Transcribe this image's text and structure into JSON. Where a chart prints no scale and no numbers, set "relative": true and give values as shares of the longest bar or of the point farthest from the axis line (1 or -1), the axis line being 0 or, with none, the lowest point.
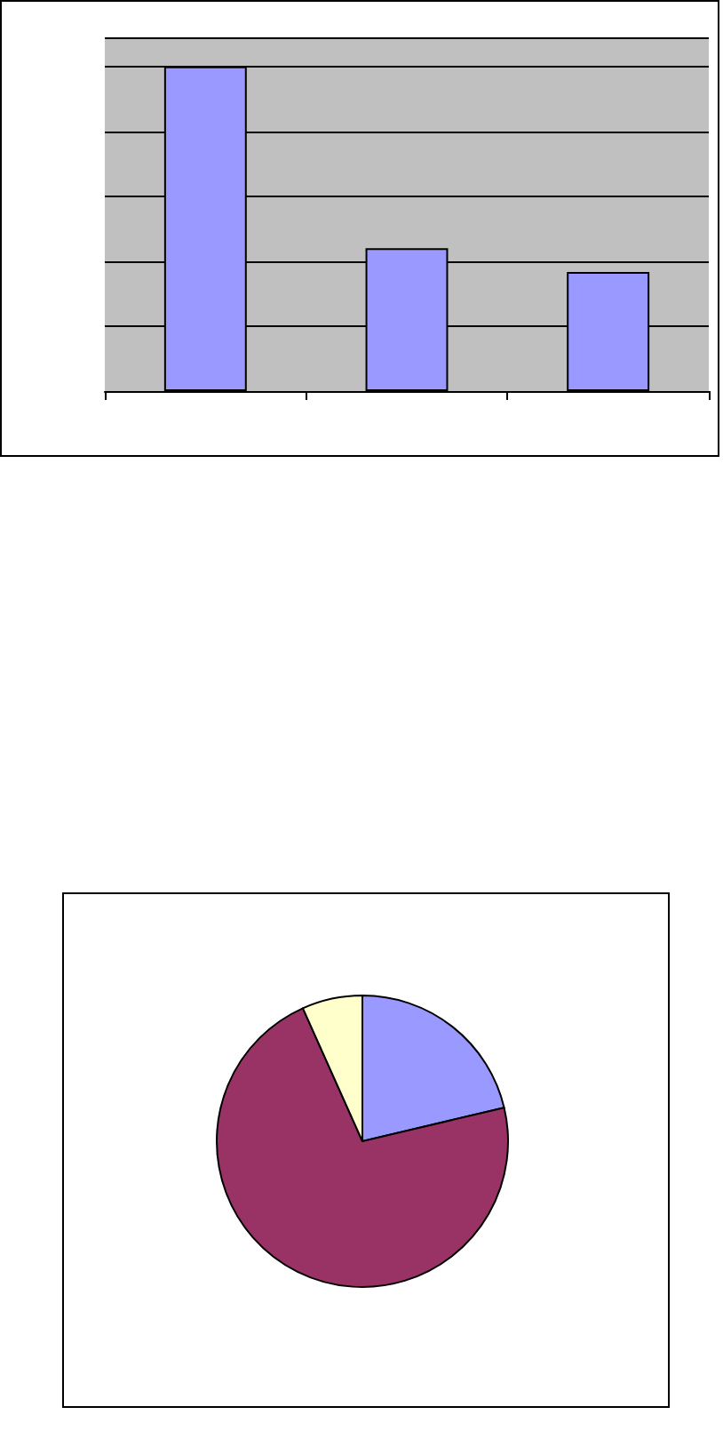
{
  "chart_data": [
    {
      "type": "bar",
      "relative": true,
      "categories": [
        null,
        null,
        null
      ],
      "values": [
        1,
        0.44,
        0.367
      ],
      "color": "#9999ff",
      "grid": "y"
    },
    {
      "type": "pie",
      "categories": [
        null,
        null,
        null
      ],
      "values": [
        21.3,
        72.0,
        6.7
      ],
      "colors": [
        "#9999ff",
        "#993366",
        "#ffffcc"
      ]
    }
  ]
}
